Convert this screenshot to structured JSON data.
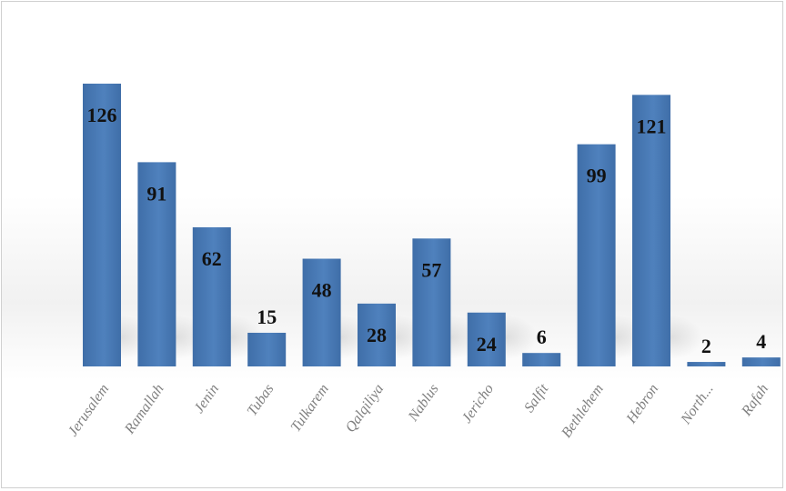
{
  "chart_data": {
    "type": "bar",
    "title": "",
    "xlabel": "",
    "ylabel": "",
    "categories": [
      "Jerusalem",
      "Ramallah",
      "Jenin",
      "Tubas",
      "Tulkarem",
      "Qalqiliya",
      "Nablus",
      "Jericho",
      "Salfit",
      "Bethlehem",
      "Hebron",
      "North...",
      "Rafah"
    ],
    "values": [
      126,
      91,
      62,
      15,
      48,
      28,
      57,
      24,
      6,
      99,
      121,
      2,
      4
    ],
    "ylim": [
      0,
      126
    ],
    "grid": false,
    "legend": "none",
    "bar_color": "#4f81bd",
    "bar_color_dark": "#3f6ea8",
    "label_color": "#111111",
    "tick_label_color": "#7f7f7f"
  }
}
